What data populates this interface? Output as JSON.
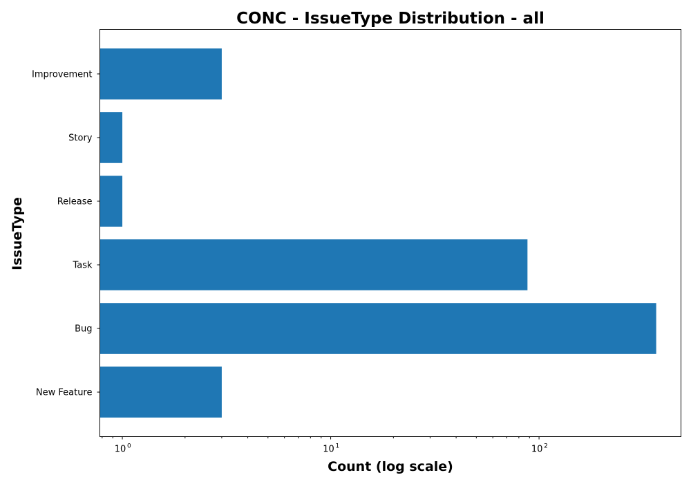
{
  "chart_data": {
    "type": "bar",
    "orientation": "horizontal",
    "title": "CONC - IssueType Distribution - all",
    "xlabel": "Count (log scale)",
    "ylabel": "IssueType",
    "x_scale": "log",
    "xlim": [
      0.78,
      480
    ],
    "x_ticks": [
      {
        "value": 1,
        "base": "10",
        "exp": "0"
      },
      {
        "value": 10,
        "base": "10",
        "exp": "1"
      },
      {
        "value": 100,
        "base": "10",
        "exp": "2"
      }
    ],
    "categories": [
      "New Feature",
      "Bug",
      "Task",
      "Release",
      "Story",
      "Improvement"
    ],
    "values": [
      3,
      365,
      88,
      1,
      1,
      3
    ],
    "bar_color": "#1f77b4",
    "grid": false,
    "legend": "none"
  }
}
